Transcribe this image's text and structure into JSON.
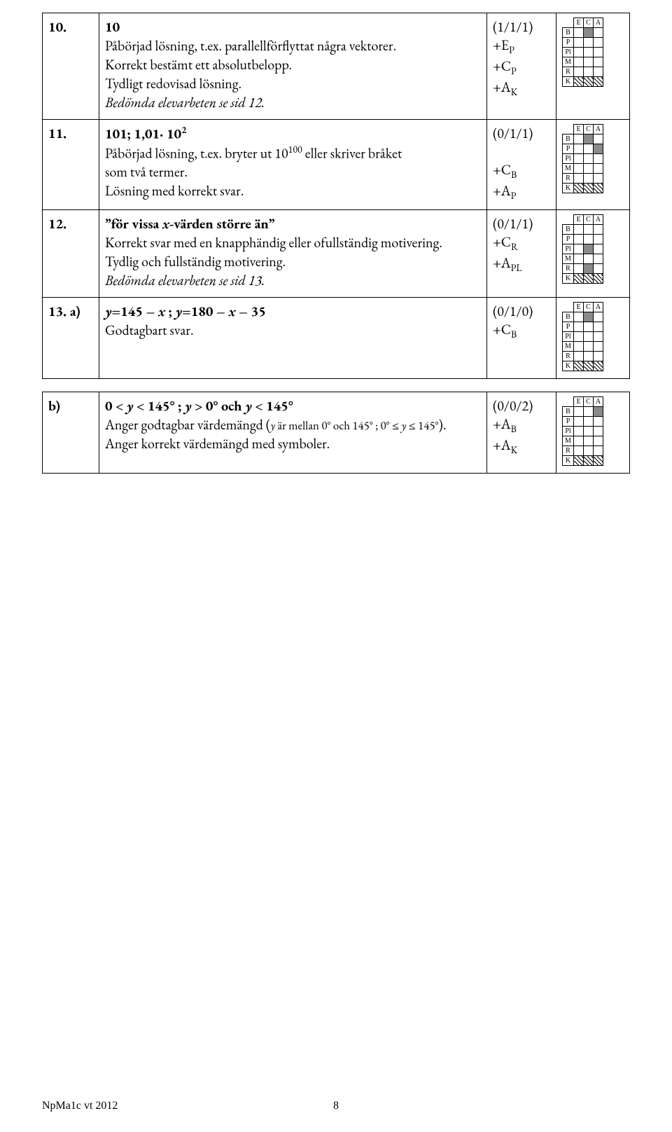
{
  "footer": {
    "left": "NpMa1c vt 2012",
    "page": "8"
  },
  "rows": [
    {
      "num": "10.",
      "ans": "10",
      "lines": [
        "Påbörjad lösning, t.ex. parallellförflyttat några vektorer.",
        "Korrekt bestämt ett absolutbelopp.",
        "Tydligt redovisad lösning."
      ],
      "note": "Bedömda elevarbeten se sid 12.",
      "scores": [
        "(1/1/1)",
        "+E",
        "+C",
        "+A"
      ],
      "scoreSubs": [
        "",
        "P",
        "P",
        "K"
      ],
      "grid": {
        "fills": [
          [
            0,
            1
          ]
        ],
        "hatch": [
          [
            5,
            0
          ],
          [
            5,
            1
          ],
          [
            5,
            2
          ]
        ]
      }
    },
    {
      "num": "11.",
      "ansHtml": "101; 1,01· 10<sup>2</sup>",
      "lines": [
        "Påbörjad lösning, t.ex. bryter ut 10<sup>100</sup> eller skriver bråket",
        "som två termer.",
        "Lösning med korrekt svar."
      ],
      "scores": [
        "(0/1/1)",
        "",
        "+C",
        "+A"
      ],
      "scoreSubs": [
        "",
        "",
        "B",
        "P"
      ],
      "grid": {
        "fills": [
          [
            0,
            1
          ],
          [
            1,
            2
          ]
        ],
        "hatch": [
          [
            5,
            0
          ],
          [
            5,
            1
          ],
          [
            5,
            2
          ]
        ]
      }
    },
    {
      "num": "12.",
      "ansHtml": "”för vissa <i>x</i>-värden större än”",
      "lines": [
        "Korrekt svar med en knapphändig eller ofullständig motivering.",
        "Tydlig och fullständig motivering."
      ],
      "note": "Bedömda elevarbeten se sid 13.",
      "scores": [
        "(0/1/1)",
        "+C",
        "+A"
      ],
      "scoreSubs": [
        "",
        "R",
        "PL"
      ],
      "grid": {
        "fills": [
          [
            2,
            1
          ],
          [
            4,
            1
          ]
        ],
        "hatch": [
          [
            5,
            0
          ],
          [
            5,
            1
          ],
          [
            5,
            2
          ]
        ]
      }
    },
    {
      "num": "13. a)",
      "ansHtml": "<i>y</i>=145 – <i>x</i> ; <i>y</i>=180 – <i>x</i> – 35",
      "lines": [
        "Godtagbart svar."
      ],
      "scores": [
        "(0/1/0)",
        "+C"
      ],
      "scoreSubs": [
        "",
        "B"
      ],
      "grid": {
        "fills": [
          [
            0,
            1
          ]
        ],
        "hatch": [
          [
            5,
            0
          ],
          [
            5,
            1
          ],
          [
            5,
            2
          ]
        ]
      }
    },
    {
      "num": "b)",
      "ansHtml": "0 < <i>y</i> < 145° ; <i>y</i> > 0° och <i>y</i> < 145°",
      "lines": [
        "Anger godtagbar värdemängd (<span style='font-size:0.85em'><i>y</i> är mellan 0° och 145° ; 0° ≤ <i>y</i> ≤ 145°</span>).",
        "Anger korrekt värdemängd med symboler."
      ],
      "scores": [
        "(0/0/2)",
        "+A",
        "+A"
      ],
      "scoreSubs": [
        "",
        "B",
        "K"
      ],
      "grid": {
        "fills": [
          [
            0,
            2
          ]
        ],
        "hatch": [
          [
            5,
            0
          ],
          [
            5,
            1
          ],
          [
            5,
            2
          ]
        ]
      }
    }
  ],
  "gridLabels": {
    "cols": [
      "E",
      "C",
      "A"
    ],
    "rows": [
      "B",
      "P",
      "Pl",
      "M",
      "R",
      "K"
    ]
  }
}
